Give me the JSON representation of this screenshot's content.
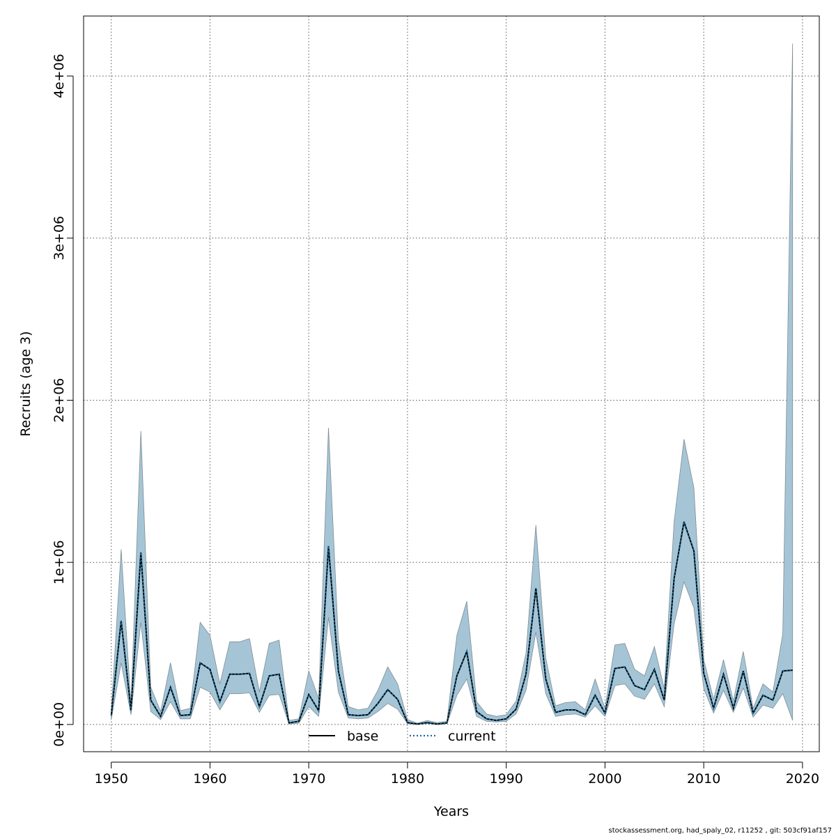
{
  "chart_data": {
    "type": "line",
    "title": "",
    "xlabel": "Years",
    "ylabel": "Recruits (age 3)",
    "xlim": [
      1947.2,
      2021.7
    ],
    "ylim": [
      -168000,
      4370000
    ],
    "x_ticks": [
      1950,
      1960,
      1970,
      1980,
      1990,
      2000,
      2010,
      2020
    ],
    "x_tick_labels": [
      "1950",
      "1960",
      "1970",
      "1980",
      "1990",
      "2000",
      "2010",
      "2020"
    ],
    "y_ticks": [
      0,
      1000000,
      2000000,
      3000000,
      4000000
    ],
    "y_tick_labels": [
      "0e+00",
      "1e+06",
      "2e+06",
      "3e+06",
      "4e+06"
    ],
    "grid": true,
    "legend_position": "bottom-center",
    "colors": {
      "band_fill": "#a5c5d6",
      "band_edge": "#7f8c93",
      "base": "#000000",
      "current": "#1a6b9a",
      "grid": "#555555"
    },
    "x": [
      1950,
      1951,
      1952,
      1953,
      1954,
      1955,
      1956,
      1957,
      1958,
      1959,
      1960,
      1961,
      1962,
      1963,
      1964,
      1965,
      1966,
      1967,
      1968,
      1969,
      1970,
      1971,
      1972,
      1973,
      1974,
      1975,
      1976,
      1977,
      1978,
      1979,
      1980,
      1981,
      1982,
      1983,
      1984,
      1985,
      1986,
      1987,
      1988,
      1989,
      1990,
      1991,
      1992,
      1993,
      1994,
      1995,
      1996,
      1997,
      1998,
      1999,
      2000,
      2001,
      2002,
      2003,
      2004,
      2005,
      2006,
      2007,
      2008,
      2009,
      2010,
      2011,
      2012,
      2013,
      2014,
      2015,
      2016,
      2017,
      2018,
      2019
    ],
    "series": [
      {
        "name": "base",
        "style": "solid",
        "values": [
          55000,
          640000,
          85000,
          1060000,
          150000,
          50000,
          230000,
          55000,
          60000,
          380000,
          340000,
          140000,
          310000,
          310000,
          315000,
          110000,
          300000,
          310000,
          10000,
          20000,
          185000,
          85000,
          1100000,
          330000,
          60000,
          55000,
          60000,
          130000,
          215000,
          155000,
          12000,
          2000,
          12000,
          2000,
          10000,
          300000,
          450000,
          80000,
          35000,
          25000,
          35000,
          95000,
          310000,
          840000,
          280000,
          75000,
          90000,
          90000,
          60000,
          180000,
          70000,
          345000,
          355000,
          240000,
          215000,
          340000,
          150000,
          900000,
          1250000,
          1070000,
          315000,
          100000,
          310000,
          100000,
          330000,
          70000,
          180000,
          150000,
          330000,
          335000
        ]
      },
      {
        "name": "current",
        "style": "dotted",
        "values": [
          55000,
          640000,
          85000,
          1060000,
          150000,
          50000,
          230000,
          55000,
          60000,
          380000,
          340000,
          140000,
          310000,
          310000,
          315000,
          110000,
          300000,
          310000,
          10000,
          20000,
          185000,
          85000,
          1100000,
          330000,
          60000,
          55000,
          60000,
          130000,
          215000,
          155000,
          12000,
          2000,
          12000,
          2000,
          10000,
          300000,
          450000,
          80000,
          35000,
          25000,
          35000,
          95000,
          310000,
          840000,
          280000,
          75000,
          90000,
          90000,
          60000,
          180000,
          70000,
          345000,
          355000,
          240000,
          215000,
          340000,
          150000,
          900000,
          1250000,
          1070000,
          315000,
          100000,
          310000,
          100000,
          330000,
          70000,
          180000,
          150000,
          330000,
          335000
        ]
      }
    ],
    "band": {
      "name": "confidence interval",
      "upper": [
        80000,
        1080000,
        120000,
        1810000,
        230000,
        80000,
        380000,
        85000,
        100000,
        630000,
        550000,
        250000,
        510000,
        510000,
        530000,
        200000,
        500000,
        520000,
        25000,
        35000,
        330000,
        160000,
        1830000,
        520000,
        110000,
        90000,
        100000,
        210000,
        355000,
        250000,
        30000,
        8000,
        25000,
        12000,
        20000,
        550000,
        760000,
        140000,
        65000,
        50000,
        60000,
        145000,
        440000,
        1230000,
        410000,
        115000,
        135000,
        140000,
        90000,
        280000,
        100000,
        490000,
        500000,
        340000,
        300000,
        480000,
        220000,
        1250000,
        1760000,
        1460000,
        400000,
        155000,
        400000,
        145000,
        450000,
        100000,
        250000,
        200000,
        560000,
        4200000
      ],
      "lower": [
        30000,
        380000,
        60000,
        630000,
        80000,
        30000,
        140000,
        35000,
        35000,
        230000,
        200000,
        90000,
        190000,
        190000,
        195000,
        75000,
        180000,
        185000,
        3000,
        8000,
        110000,
        50000,
        660000,
        200000,
        40000,
        35000,
        40000,
        80000,
        130000,
        95000,
        5000,
        0,
        5000,
        0,
        5000,
        180000,
        280000,
        50000,
        20000,
        15000,
        20000,
        65000,
        210000,
        570000,
        190000,
        50000,
        60000,
        65000,
        45000,
        115000,
        50000,
        240000,
        250000,
        175000,
        155000,
        250000,
        110000,
        620000,
        880000,
        720000,
        220000,
        70000,
        210000,
        75000,
        225000,
        45000,
        120000,
        100000,
        190000,
        25000
      ]
    }
  },
  "footer": {
    "text": "stockassessment.org, had_spaly_02, r11252 , git: 503cf91af157"
  }
}
